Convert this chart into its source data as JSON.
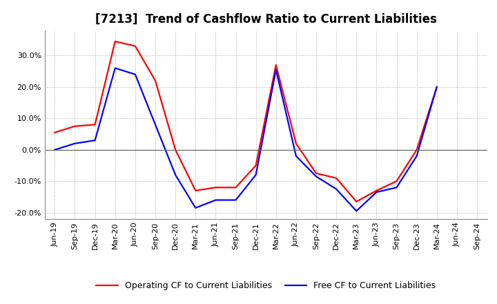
{
  "title": "[7213]  Trend of Cashflow Ratio to Current Liabilities",
  "x_labels": [
    "Jun-19",
    "Sep-19",
    "Dec-19",
    "Mar-20",
    "Jun-20",
    "Sep-20",
    "Dec-20",
    "Mar-21",
    "Jun-21",
    "Sep-21",
    "Dec-21",
    "Mar-22",
    "Jun-22",
    "Sep-22",
    "Dec-22",
    "Mar-23",
    "Jun-23",
    "Sep-23",
    "Dec-23",
    "Mar-24",
    "Jun-24",
    "Sep-24"
  ],
  "operating_cf_full": [
    5.5,
    7.5,
    8.0,
    34.5,
    33.0,
    22.0,
    0.0,
    -13.0,
    -12.0,
    -12.0,
    -5.0,
    27.0,
    2.0,
    -7.5,
    -9.0,
    -16.5,
    -13.0,
    -10.0,
    0.0,
    20.0,
    null,
    null
  ],
  "free_cf_full": [
    0.0,
    2.0,
    3.0,
    26.0,
    24.0,
    8.0,
    -8.0,
    -18.5,
    -16.0,
    -16.0,
    -8.0,
    25.5,
    -2.0,
    -8.5,
    -12.5,
    -19.5,
    -13.5,
    -12.0,
    -2.0,
    20.0,
    null,
    null
  ],
  "ylim": [
    -22,
    38
  ],
  "yticks": [
    -20,
    -10,
    0,
    10,
    20,
    30
  ],
  "operating_color": "#FF0000",
  "free_color": "#0000FF",
  "background_color": "#FFFFFF",
  "grid_color": "#AAAAAA",
  "title_fontsize": 12,
  "legend_fontsize": 9,
  "tick_fontsize": 8
}
